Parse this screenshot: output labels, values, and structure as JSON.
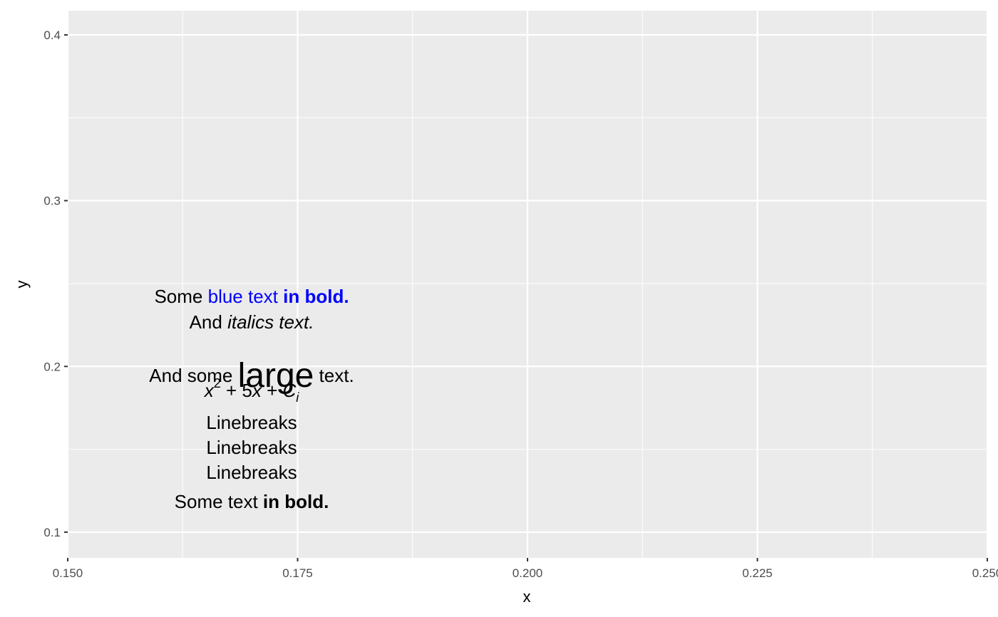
{
  "chart_data": {
    "type": "richtext",
    "x_title": "x",
    "y_title": "y",
    "xlim": [
      0.15,
      0.25
    ],
    "ylim": [
      0.0845,
      0.4146
    ],
    "xticks": [
      {
        "value": 0.15,
        "label": "0.150"
      },
      {
        "value": 0.175,
        "label": "0.175"
      },
      {
        "value": 0.2,
        "label": "0.200"
      },
      {
        "value": 0.225,
        "label": "0.225"
      },
      {
        "value": 0.25,
        "label": "0.250"
      }
    ],
    "yticks": [
      0.1,
      0.2,
      0.3,
      0.4
    ],
    "x_minor_grid": [
      0.1625,
      0.1875,
      0.2125,
      0.2375
    ],
    "y_minor_grid": [
      0.15,
      0.25,
      0.35
    ],
    "grid": true,
    "label": {
      "x": 0.17,
      "y": 0.18,
      "lines": [
        [
          {
            "text": "Some "
          },
          {
            "text": "blue text ",
            "color": "#0000ff"
          },
          {
            "text": "in bold.",
            "color": "#0000ff",
            "bold": true
          }
        ],
        [
          {
            "text": "And "
          },
          {
            "text": "italics text.",
            "italic": true
          }
        ],
        [
          {
            "text": "And some "
          },
          {
            "text": "large",
            "large": true
          },
          {
            "text": " text."
          }
        ],
        [
          {
            "text": "x",
            "italic": true
          },
          {
            "text": "2",
            "sup": true
          },
          {
            "text": " + 5"
          },
          {
            "text": "x",
            "italic": true
          },
          {
            "text": " + "
          },
          {
            "text": "C",
            "italic": true
          },
          {
            "text": "i",
            "italic": true,
            "sub": true
          }
        ],
        [
          {
            "text": "Linebreaks"
          }
        ],
        [
          {
            "text": "Linebreaks"
          }
        ],
        [
          {
            "text": "Linebreaks"
          }
        ],
        [
          {
            "text": "Some text "
          },
          {
            "text": "in bold.",
            "bold": true
          }
        ]
      ]
    }
  }
}
